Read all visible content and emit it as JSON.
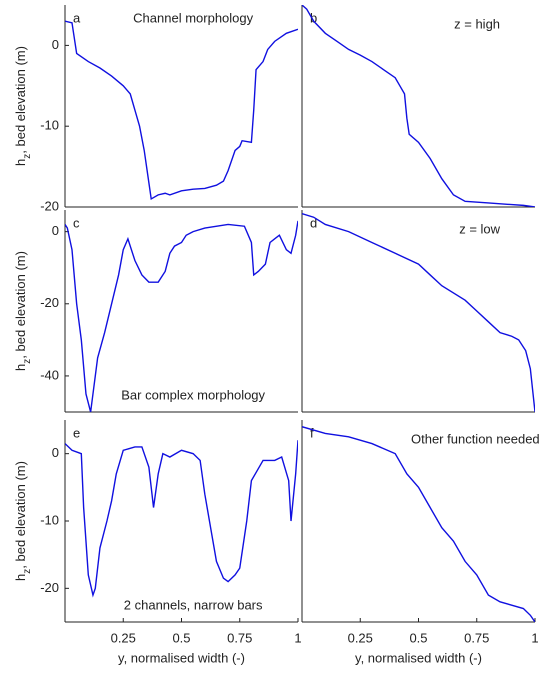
{
  "chart_data": [
    {
      "type": "line",
      "label": "a",
      "annotation": "Channel morphology",
      "ylabel_parts": [
        "h",
        "z",
        ", bed elevation (m)"
      ],
      "x": [
        0,
        0.03,
        0.05,
        0.1,
        0.15,
        0.2,
        0.25,
        0.28,
        0.3,
        0.32,
        0.34,
        0.36,
        0.37,
        0.4,
        0.43,
        0.45,
        0.5,
        0.55,
        0.6,
        0.65,
        0.68,
        0.7,
        0.73,
        0.75,
        0.76,
        0.8,
        0.81,
        0.82,
        0.85,
        0.87,
        0.9,
        0.95,
        1
      ],
      "series": [
        {
          "color": "#1010e0",
          "values": [
            3,
            2.8,
            -1,
            -2,
            -2.8,
            -3.8,
            -5,
            -6,
            -8,
            -10,
            -13,
            -17,
            -19,
            -18.5,
            -18.3,
            -18.5,
            -18,
            -17.8,
            -17.7,
            -17.3,
            -16.8,
            -15.5,
            -13,
            -12.5,
            -11.8,
            -12,
            -8,
            -3,
            -2,
            -0.5,
            0.5,
            1.5,
            2
          ]
        }
      ],
      "xlim": [
        0,
        1
      ],
      "ylim": [
        -20,
        5
      ],
      "yticks": [
        -20,
        -10,
        0
      ]
    },
    {
      "type": "line",
      "label": "b",
      "annotation": "z = high",
      "x": [
        0,
        0.02,
        0.05,
        0.1,
        0.15,
        0.2,
        0.25,
        0.3,
        0.35,
        0.4,
        0.42,
        0.44,
        0.45,
        0.46,
        0.5,
        0.55,
        0.6,
        0.65,
        0.7,
        0.8,
        0.9,
        0.95,
        1
      ],
      "series": [
        {
          "color": "#1010e0",
          "values": [
            5,
            4.5,
            3,
            1.5,
            0.5,
            -0.5,
            -1.2,
            -2,
            -3,
            -4,
            -5,
            -6,
            -9,
            -11,
            -12,
            -14,
            -16.5,
            -18.5,
            -19.3,
            -19.5,
            -19.7,
            -19.8,
            -20
          ]
        }
      ],
      "xlim": [
        0,
        1
      ],
      "ylim": [
        -20,
        5
      ]
    },
    {
      "type": "line",
      "label": "c",
      "annotation": "Bar complex morphology",
      "ylabel_parts": [
        "h",
        "z",
        ", bed elevation (m)"
      ],
      "x": [
        0,
        0.01,
        0.03,
        0.05,
        0.07,
        0.09,
        0.11,
        0.12,
        0.14,
        0.17,
        0.2,
        0.23,
        0.25,
        0.27,
        0.3,
        0.33,
        0.36,
        0.4,
        0.43,
        0.45,
        0.47,
        0.5,
        0.52,
        0.55,
        0.6,
        0.7,
        0.77,
        0.8,
        0.81,
        0.83,
        0.86,
        0.88,
        0.9,
        0.92,
        0.95,
        0.97,
        0.99,
        1
      ],
      "series": [
        {
          "color": "#1010e0",
          "values": [
            2,
            1,
            -5,
            -20,
            -30,
            -45,
            -50,
            -45,
            -35,
            -28,
            -20,
            -12,
            -5,
            -2,
            -8,
            -12,
            -14,
            -14,
            -11,
            -6,
            -4,
            -3,
            -1,
            0,
            1,
            2,
            1.5,
            -3,
            -12,
            -11,
            -9,
            -3,
            -2,
            -1,
            -5,
            -6,
            -1,
            3
          ]
        }
      ],
      "xlim": [
        0,
        1
      ],
      "ylim": [
        -50,
        6
      ],
      "yticks": [
        -40,
        -20,
        0
      ]
    },
    {
      "type": "line",
      "label": "d",
      "annotation": "z = low",
      "x": [
        0,
        0.05,
        0.1,
        0.2,
        0.3,
        0.4,
        0.5,
        0.55,
        0.6,
        0.7,
        0.75,
        0.8,
        0.85,
        0.9,
        0.93,
        0.96,
        0.98,
        1
      ],
      "series": [
        {
          "color": "#1010e0",
          "values": [
            5,
            4,
            2,
            0,
            -3,
            -6,
            -9,
            -12,
            -15,
            -19,
            -22,
            -25,
            -28,
            -29,
            -30,
            -33,
            -38,
            -50
          ]
        }
      ],
      "xlim": [
        0,
        1
      ],
      "ylim": [
        -50,
        6
      ]
    },
    {
      "type": "line",
      "label": "e",
      "annotation": "2 channels, narrow bars",
      "ylabel_parts": [
        "h",
        "z",
        ", bed elevation (m)"
      ],
      "xlabel": "y, normalised width (-)",
      "x": [
        0,
        0.03,
        0.07,
        0.08,
        0.1,
        0.12,
        0.13,
        0.15,
        0.18,
        0.2,
        0.22,
        0.25,
        0.3,
        0.33,
        0.36,
        0.38,
        0.4,
        0.42,
        0.45,
        0.5,
        0.55,
        0.58,
        0.6,
        0.63,
        0.65,
        0.68,
        0.7,
        0.73,
        0.75,
        0.78,
        0.8,
        0.85,
        0.9,
        0.93,
        0.96,
        0.97,
        0.99,
        1
      ],
      "series": [
        {
          "color": "#1010e0",
          "values": [
            1.5,
            0.5,
            0,
            -8,
            -18,
            -21,
            -20,
            -14,
            -10,
            -7,
            -3,
            0.5,
            1,
            1,
            -2,
            -8,
            -3,
            0,
            -0.5,
            0.5,
            0,
            -1,
            -6,
            -12,
            -16,
            -18.5,
            -19,
            -18,
            -17,
            -10,
            -4,
            -1,
            -1,
            -0.5,
            -4,
            -10,
            -3,
            2
          ]
        }
      ],
      "xlim": [
        0,
        1
      ],
      "ylim": [
        -25,
        5
      ],
      "yticks": [
        -20,
        -10,
        0
      ],
      "xticks": [
        0.25,
        0.5,
        0.75,
        1
      ]
    },
    {
      "type": "line",
      "label": "f",
      "annotation": "Other function needed",
      "xlabel": "y, normalised width (-)",
      "x": [
        0,
        0.1,
        0.2,
        0.3,
        0.4,
        0.45,
        0.5,
        0.55,
        0.6,
        0.65,
        0.7,
        0.75,
        0.8,
        0.85,
        0.9,
        0.95,
        0.98,
        1
      ],
      "series": [
        {
          "color": "#1010e0",
          "values": [
            4,
            3,
            2.5,
            1.5,
            0,
            -3,
            -5,
            -8,
            -11,
            -13,
            -16,
            -18,
            -21,
            -22,
            -22.5,
            -23,
            -24,
            -25
          ]
        }
      ],
      "xlim": [
        0,
        1
      ],
      "ylim": [
        -25,
        5
      ],
      "xticks": [
        0.25,
        0.5,
        0.75,
        1
      ]
    }
  ]
}
